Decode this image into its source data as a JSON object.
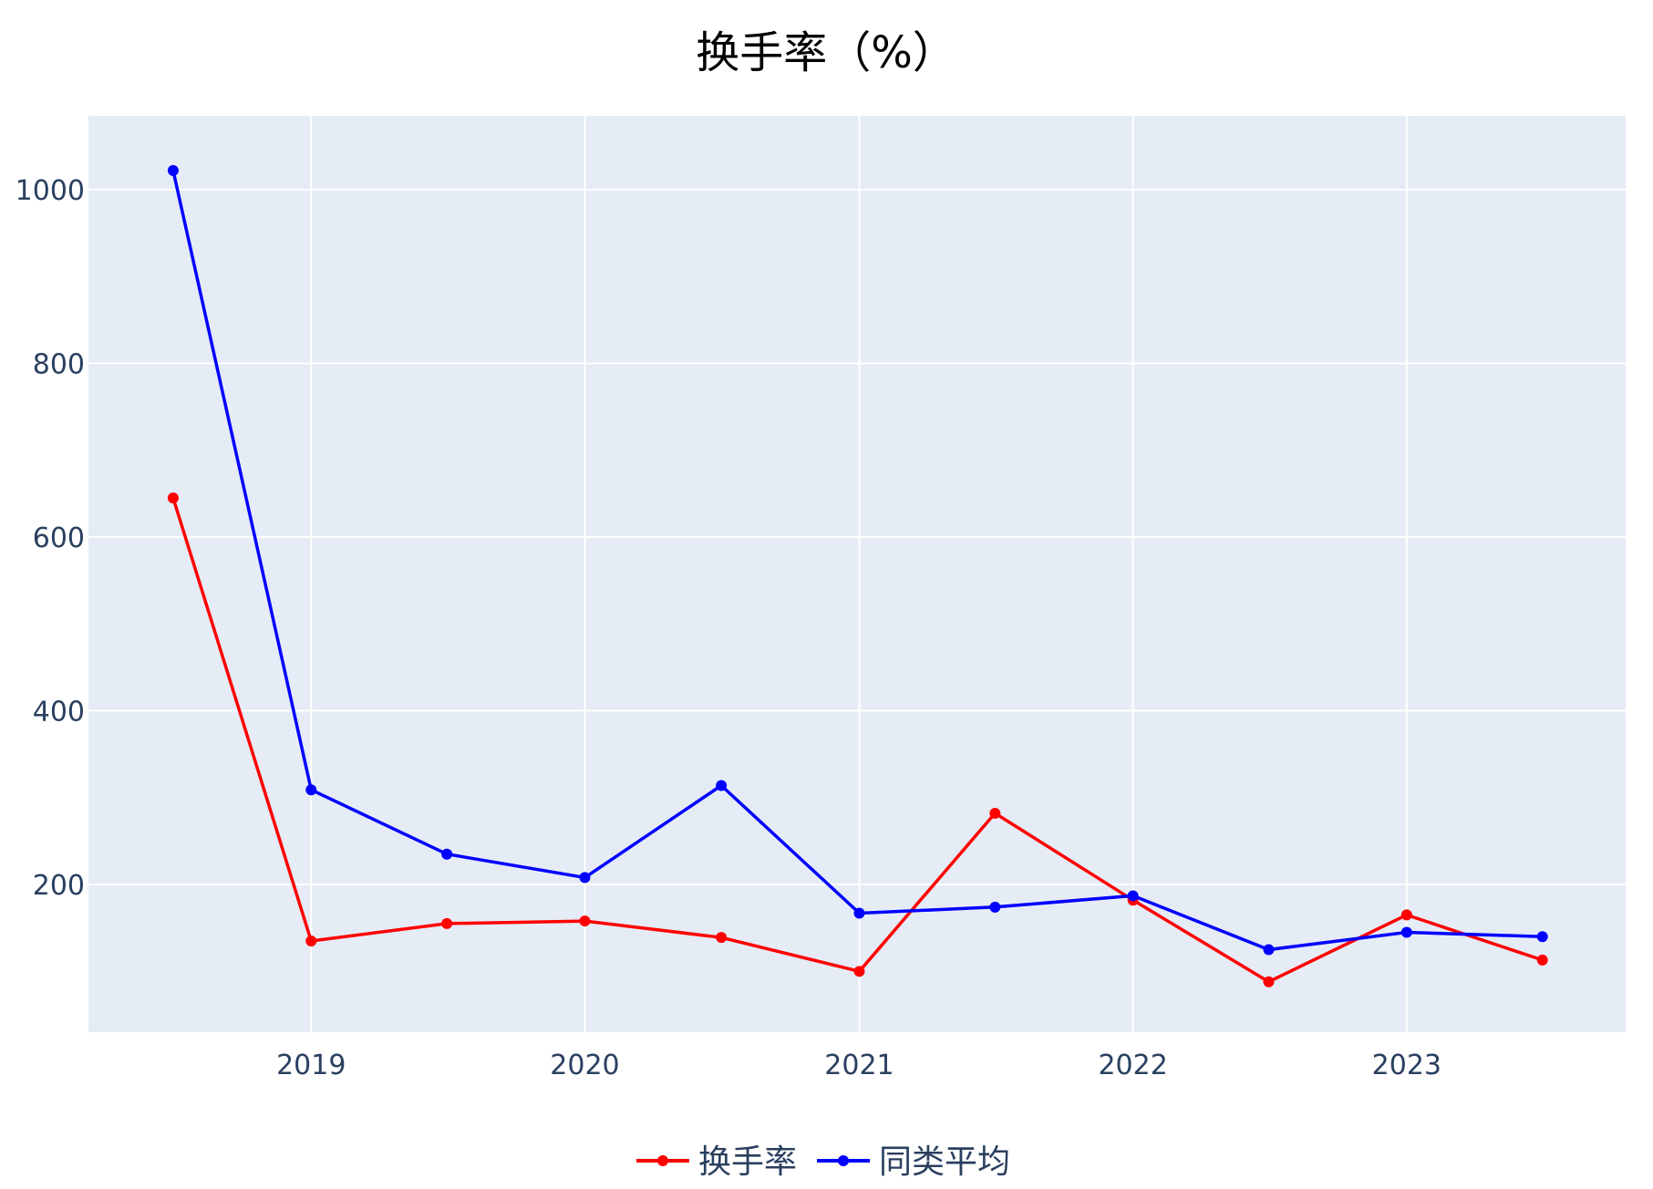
{
  "chart_data": {
    "type": "line",
    "title": "换手率（%）",
    "xlabel": "",
    "ylabel": "",
    "x": [
      "2018-07-01",
      "2019-01-01",
      "2019-07-01",
      "2020-01-01",
      "2020-07-01",
      "2021-01-01",
      "2021-07-01",
      "2022-01-01",
      "2022-07-01",
      "2023-01-01",
      "2023-07-01"
    ],
    "xlim": [
      "2018-03-10",
      "2023-10-20"
    ],
    "ylim": [
      30,
      1085
    ],
    "x_ticks": [
      {
        "value": "2019-01-01",
        "label": "2019"
      },
      {
        "value": "2020-01-01",
        "label": "2020"
      },
      {
        "value": "2021-01-01",
        "label": "2021"
      },
      {
        "value": "2022-01-01",
        "label": "2022"
      },
      {
        "value": "2023-01-01",
        "label": "2023"
      }
    ],
    "y_ticks": [
      {
        "value": 200,
        "label": "200"
      },
      {
        "value": 400,
        "label": "400"
      },
      {
        "value": 600,
        "label": "600"
      },
      {
        "value": 800,
        "label": "800"
      },
      {
        "value": 1000,
        "label": "1000"
      }
    ],
    "grid": true,
    "legend_position": "bottom-center",
    "plot_background": "#e5ecf6",
    "gridline_color": "#ffffff",
    "tick_color": "#2a3f5f",
    "series": [
      {
        "name": "换手率",
        "color": "#ff0000",
        "values": [
          645,
          135,
          155,
          158,
          139,
          100,
          282,
          182,
          88,
          165,
          113
        ]
      },
      {
        "name": "同类平均",
        "color": "#0000ff",
        "values": [
          1022,
          309,
          235,
          208,
          314,
          167,
          174,
          187,
          125,
          145,
          140
        ]
      }
    ]
  }
}
